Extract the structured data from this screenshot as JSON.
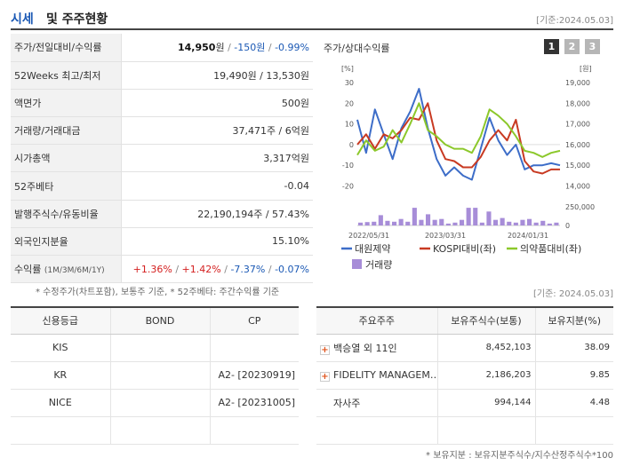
{
  "header": {
    "title_accent": "시세",
    "title_rest": "및 주주현황",
    "date": "[기준:2024.05.03]"
  },
  "price_info": {
    "rows": [
      {
        "label": "주가/전일대비/수익률",
        "price": "14,950",
        "unit": "원",
        "sep": " / ",
        "change": "-150원",
        "sep2": " / ",
        "rate": "-0.99%"
      },
      {
        "label": "52Weeks 최고/최저",
        "value": "19,490원 / 13,530원"
      },
      {
        "label": "액면가",
        "value": "500원"
      },
      {
        "label": "거래량/거래대금",
        "value": "37,471주 / 6억원"
      },
      {
        "label": "시가총액",
        "value": "3,317억원"
      },
      {
        "label": "52주베타",
        "value": "-0.04"
      },
      {
        "label": "발행주식수/유동비율",
        "value": "22,190,194주 / 57.43%"
      },
      {
        "label": "외국인지분율",
        "value": "15.10%"
      },
      {
        "label": "수익률",
        "label_sub": "(1M/3M/6M/1Y)",
        "r1": "+1.36%",
        "r2": "+1.42%",
        "r3": "-7.37%",
        "r4": "-0.07%",
        "slash": "/"
      }
    ],
    "note": "* 수정주가(차트포함), 보통주 기준, * 52주베타: 주간수익률 기준"
  },
  "chart": {
    "title": "주가/상대수익률",
    "pages": [
      "1",
      "2",
      "3"
    ],
    "left_unit": "[%]",
    "right_unit": "[원]",
    "chart_data": {
      "type": "line",
      "left_ticks": [
        "30",
        "20",
        "10",
        "0",
        "-10",
        "-20"
      ],
      "right_ticks": [
        "19,000",
        "18,000",
        "17,000",
        "16,000",
        "15,000",
        "14,000"
      ],
      "volume_ticks": [
        "250,000",
        "0"
      ],
      "x_labels": [
        "2022/05/31",
        "2023/03/31",
        "2024/01/31"
      ],
      "ylim_left": [
        -25,
        32
      ],
      "series": [
        {
          "name": "대원제약",
          "color": "#3d6dc8",
          "values": [
            12,
            -4,
            17,
            5,
            -7,
            8,
            16,
            27,
            8,
            -7,
            -15,
            -11,
            -15,
            -17,
            -2,
            13,
            2,
            -5,
            0,
            -12,
            -10,
            -10,
            -9,
            -10
          ]
        },
        {
          "name": "KOSPI대비(좌)",
          "color": "#c83a22",
          "values": [
            0,
            5,
            -2,
            5,
            3,
            7,
            13,
            12,
            20,
            2,
            -7,
            -8,
            -11,
            -11,
            -6,
            2,
            7,
            2,
            12,
            -8,
            -13,
            -14,
            -12,
            -12
          ]
        },
        {
          "name": "의약품대비(좌)",
          "color": "#8cc82b",
          "values": [
            -5,
            2,
            -3,
            -1,
            7,
            1,
            10,
            20,
            7,
            4,
            0,
            -2,
            -2,
            -4,
            4,
            17,
            14,
            10,
            4,
            -3,
            -4,
            -6,
            -4,
            -3
          ]
        }
      ],
      "volume": {
        "name": "거래량",
        "color": "#a78dd8",
        "values": [
          0.15,
          0.18,
          0.2,
          0.55,
          0.25,
          0.2,
          0.35,
          0.2,
          0.95,
          0.3,
          0.6,
          0.3,
          0.35,
          0.1,
          0.15,
          0.3,
          0.95,
          0.95,
          0.15,
          0.75,
          0.3,
          0.4,
          0.2,
          0.15,
          0.3,
          0.35,
          0.15,
          0.25,
          0.1,
          0.15
        ]
      }
    }
  },
  "credit": {
    "headers": [
      "신용등급",
      "BOND",
      "CP"
    ],
    "rows": [
      {
        "agency": "KIS",
        "bond": "",
        "cp": ""
      },
      {
        "agency": "KR",
        "bond": "",
        "cp": "A2-  [20230919]"
      },
      {
        "agency": "NICE",
        "bond": "",
        "cp": "A2-  [20231005]"
      },
      {
        "agency": "",
        "bond": "",
        "cp": ""
      }
    ]
  },
  "holders": {
    "date": "[기준: 2024.05.03]",
    "headers": [
      "주요주주",
      "보유주식수(보통)",
      "보유지분(%)"
    ],
    "rows": [
      {
        "name": "백승열 외 11인",
        "shares": "8,452,103",
        "pct": "38.09",
        "expand": true
      },
      {
        "name": "FIDELITY MANAGEM…",
        "shares": "2,186,203",
        "pct": "9.85",
        "expand": true
      },
      {
        "name": "자사주",
        "shares": "994,144",
        "pct": "4.48",
        "expand": false
      },
      {
        "name": "",
        "shares": "",
        "pct": "",
        "expand": false
      }
    ],
    "note": "* 보유지분 : 보유지분주식수/지수산정주식수*100"
  }
}
